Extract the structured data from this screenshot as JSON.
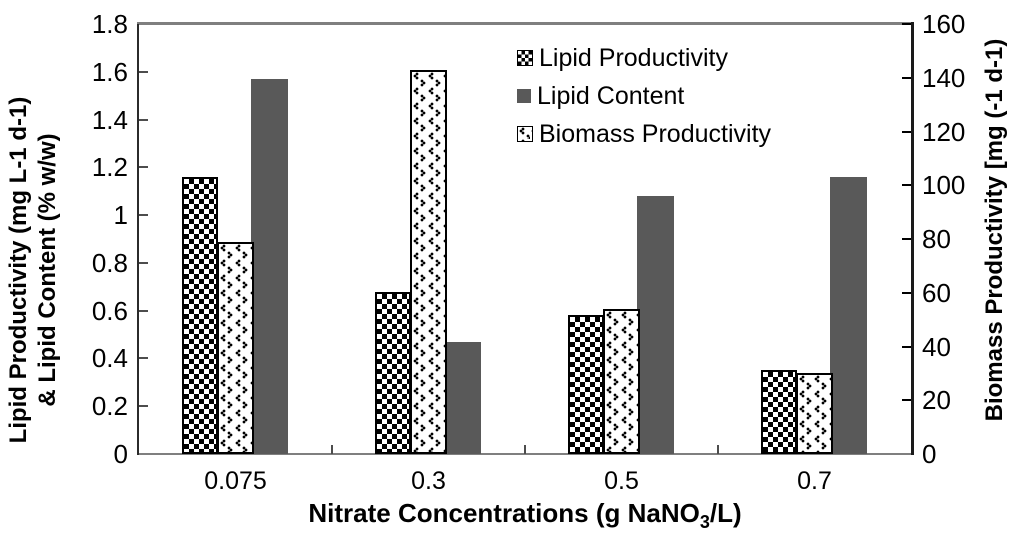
{
  "chart_data": {
    "type": "bar",
    "title": "",
    "categories": [
      "0.075",
      "0.3",
      "0.5",
      "0.7"
    ],
    "series": [
      {
        "name": "Lipid Productivity",
        "axis": "left",
        "pattern": "checker",
        "slot": 0,
        "values": [
          1.16,
          0.68,
          0.58,
          0.35
        ]
      },
      {
        "name": "Lipid Content",
        "axis": "left",
        "pattern": "solid",
        "slot": 2,
        "color": "#595959",
        "values": [
          1.57,
          0.47,
          1.08,
          1.16
        ]
      },
      {
        "name": "Biomass Productivity",
        "axis": "right",
        "pattern": "dotted",
        "slot": 1,
        "values": [
          79,
          143,
          54,
          30
        ]
      }
    ],
    "xlabel": {
      "pre": "Nitrate Concentrations (g NaNO",
      "sub": "3",
      "post": "/L)"
    },
    "ylabel_left_line1": "Lipid Productivity (mg L-1 d-1)",
    "ylabel_left_line2": "& Lipid Content (% w/w)",
    "ylabel_right": "Biomass Productivity [mg (-1 d-1)",
    "left_axis": {
      "min": 0,
      "max": 1.8,
      "step": 0.2,
      "ticks": [
        "1.8",
        "1.6",
        "1.4",
        "1.2",
        "1",
        "0.8",
        "0.6",
        "0.4",
        "0.2",
        "0"
      ]
    },
    "right_axis": {
      "min": 0,
      "max": 160,
      "step": 20,
      "ticks": [
        "160",
        "140",
        "120",
        "100",
        "80",
        "60",
        "40",
        "20",
        "0"
      ]
    },
    "legend_position": "top-center-inside",
    "grid": false
  },
  "colors": {
    "bar_gray": "#595959",
    "frame_gray": "#7f7f7f",
    "axis_black": "#1a1a1a",
    "text": "#000000"
  }
}
